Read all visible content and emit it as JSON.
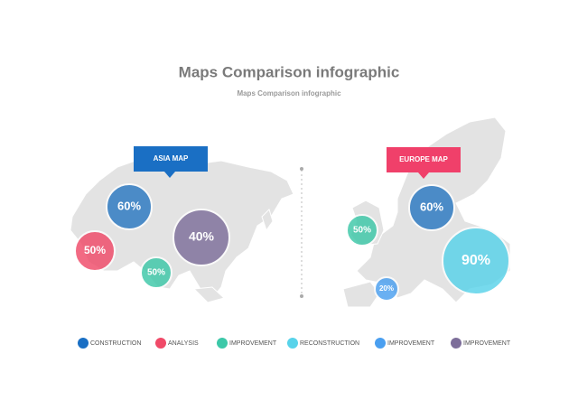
{
  "header": {
    "title": "Maps Comparison infographic",
    "subtitle": "Maps Comparison infographic"
  },
  "asia": {
    "label": "ASIA MAP",
    "bubbles": [
      "60%",
      "50%",
      "40%",
      "50%"
    ]
  },
  "europe": {
    "label": "EUROPE MAP",
    "bubbles": [
      "60%",
      "50%",
      "90%",
      "20%"
    ]
  },
  "legend": [
    "CONSTRUCTION",
    "ANALYSIS",
    "IMPROVEMENT",
    "RECONSTRUCTION",
    "IMPROVEMENT",
    "IMPROVEMENT"
  ]
}
